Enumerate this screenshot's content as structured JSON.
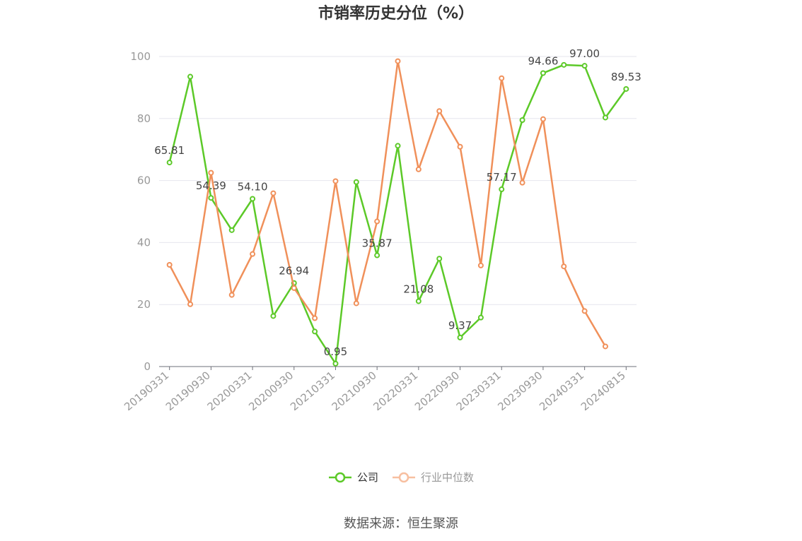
{
  "chart_data": {
    "type": "line",
    "title": "市销率历史分位（%）",
    "ylim": [
      0,
      100
    ],
    "yticks": [
      0,
      20,
      40,
      60,
      80,
      100
    ],
    "x": [
      "20190331",
      "20190630",
      "20190930",
      "20191231",
      "20200331",
      "20200630",
      "20200930",
      "20201231",
      "20210331",
      "20210630",
      "20210930",
      "20211231",
      "20220331",
      "20220630",
      "20220930",
      "20221231",
      "20230331",
      "20230630",
      "20230930",
      "20231231",
      "20240331",
      "20240630",
      "20240815"
    ],
    "xtick_labels": [
      "20190331",
      "20190930",
      "20200331",
      "20200930",
      "20210331",
      "20210930",
      "20220331",
      "20220930",
      "20230331",
      "20230930",
      "20240331",
      "20240815"
    ],
    "grid": "horizontal",
    "legend_position": "bottom",
    "series": [
      {
        "name": "公司",
        "color": "#5cc928",
        "values": [
          65.81,
          93.5,
          54.39,
          44.0,
          54.1,
          16.3,
          26.94,
          11.3,
          0.95,
          59.5,
          35.87,
          71.2,
          21.08,
          34.8,
          9.37,
          15.8,
          57.17,
          79.5,
          94.66,
          97.3,
          97.0,
          80.3,
          89.53
        ],
        "labels": [
          "65.81",
          "",
          "54.39",
          "",
          "54.10",
          "",
          "26.94",
          "",
          "0.95",
          "",
          "35.87",
          "",
          "21.08",
          "",
          "9.37",
          "",
          "57.17",
          "",
          "94.66",
          "",
          "97.00",
          "",
          "89.53"
        ]
      },
      {
        "name": "行业中位数",
        "color": "#f0905a",
        "values": [
          32.8,
          20.1,
          62.5,
          23.1,
          36.3,
          55.9,
          25.3,
          15.6,
          59.8,
          20.4,
          46.8,
          98.5,
          63.6,
          82.4,
          70.9,
          32.6,
          93.0,
          59.3,
          79.8,
          32.3,
          17.9,
          6.5,
          null
        ]
      }
    ]
  },
  "source_text": "数据来源：恒生聚源"
}
